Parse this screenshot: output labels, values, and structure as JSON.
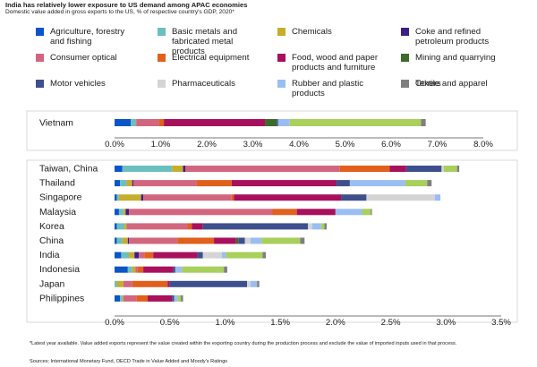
{
  "title": "India has relatively lower exposure to US demand among APAC economies",
  "subtitle": "Domestic value added in gross exports to the US, % of respective country's GDP, 2020*",
  "footnote": "*Latest year available. Value added exports represent the value created within the exporting country during the production process and exclude the value of imported inputs used in that process.",
  "sources": "Sources: International Monetary Fund, OECD Trade in Value Added and Moody's Ratings",
  "chart_data": [
    {
      "type": "stacked-bar-horizontal",
      "unit": "% of GDP",
      "xlim": [
        0,
        8
      ],
      "ticks": [
        0,
        1,
        2,
        3,
        4,
        5,
        6,
        7,
        8
      ],
      "tick_labels": [
        "0.0%",
        "1.0%",
        "2.0%",
        "3.0%",
        "4.0%",
        "5.0%",
        "6.0%",
        "7.0%",
        "8.0%"
      ],
      "categories": [
        "Vietnam"
      ],
      "series": [
        {
          "name": "Agriculture, forestry and fishing",
          "color": "#0a55c8",
          "values": [
            0.35
          ]
        },
        {
          "name": "Basic metals and fabricated metal products",
          "color": "#6bbfbf",
          "values": [
            0.12
          ]
        },
        {
          "name": "Chemicals",
          "color": "#c7ad2e",
          "values": [
            0.0
          ]
        },
        {
          "name": "Coke and refined petroleum products",
          "color": "#3b1f86",
          "values": [
            0.0
          ]
        },
        {
          "name": "Consumer optical",
          "color": "#d2667f",
          "values": [
            0.5
          ]
        },
        {
          "name": "Electrical equipment",
          "color": "#e0601c",
          "values": [
            0.1
          ]
        },
        {
          "name": "Food, wood and paper products and furniture",
          "color": "#a8105c",
          "values": [
            2.2
          ]
        },
        {
          "name": "Mining and quarrying",
          "color": "#3f6b2a",
          "values": [
            0.25
          ]
        },
        {
          "name": "Motor vehicles",
          "color": "#3e4f8d",
          "values": [
            0.03
          ]
        },
        {
          "name": "Pharmaceuticals",
          "color": "#d4d4d4",
          "values": [
            0.0
          ]
        },
        {
          "name": "Rubber and plastic products",
          "color": "#9bbef2",
          "values": [
            0.25
          ]
        },
        {
          "name": "Textile and apparel",
          "color": "#a9cf5c",
          "values": [
            2.85
          ]
        },
        {
          "name": "Others",
          "color": "#7f7f7f",
          "values": [
            0.1
          ]
        }
      ]
    },
    {
      "type": "stacked-bar-horizontal",
      "unit": "% of GDP",
      "xlim": [
        0,
        3.5
      ],
      "ticks": [
        0,
        0.5,
        1,
        1.5,
        2,
        2.5,
        3,
        3.5
      ],
      "tick_labels": [
        "0.0%",
        "0.5%",
        "1.0%",
        "1.5%",
        "2.0%",
        "2.5%",
        "3.0%",
        "3.5%"
      ],
      "categories": [
        "Taiwan, China",
        "Thailand",
        "Singapore",
        "Malaysia",
        "Korea",
        "China",
        "India",
        "Indonesia",
        "Japan",
        "Philippines"
      ],
      "series": [
        {
          "name": "Agriculture, forestry and fishing",
          "color": "#0a55c8",
          "values": [
            0.07,
            0.05,
            0.02,
            0.04,
            0.02,
            0.02,
            0.06,
            0.12,
            0.0,
            0.05
          ]
        },
        {
          "name": "Basic metals and fabricated metal products",
          "color": "#6bbfbf",
          "values": [
            0.45,
            0.06,
            0.02,
            0.04,
            0.07,
            0.05,
            0.07,
            0.04,
            0.02,
            0.02
          ]
        },
        {
          "name": "Chemicals",
          "color": "#c7ad2e",
          "values": [
            0.1,
            0.05,
            0.2,
            0.02,
            0.02,
            0.05,
            0.05,
            0.03,
            0.06,
            0.01
          ]
        },
        {
          "name": "Coke and refined petroleum products",
          "color": "#3b1f86",
          "values": [
            0.02,
            0.01,
            0.02,
            0.03,
            0.0,
            0.01,
            0.04,
            0.0,
            0.0,
            0.0
          ]
        },
        {
          "name": "Consumer optical",
          "color": "#d2667f",
          "values": [
            1.4,
            0.57,
            0.8,
            1.3,
            0.55,
            0.44,
            0.05,
            0.02,
            0.08,
            0.12
          ]
        },
        {
          "name": "Electrical equipment",
          "color": "#e0601c",
          "values": [
            0.45,
            0.32,
            0.02,
            0.22,
            0.04,
            0.33,
            0.08,
            0.05,
            0.32,
            0.1
          ]
        },
        {
          "name": "Food, wood and paper products and furniture",
          "color": "#a8105c",
          "values": [
            0.15,
            0.95,
            0.97,
            0.35,
            0.1,
            0.2,
            0.4,
            0.27,
            0.02,
            0.22
          ]
        },
        {
          "name": "Mining and quarrying",
          "color": "#3f6b2a",
          "values": [
            0.0,
            0.0,
            0.0,
            0.0,
            0.0,
            0.02,
            0.0,
            0.0,
            0.0,
            0.0
          ]
        },
        {
          "name": "Motor vehicles",
          "color": "#3e4f8d",
          "values": [
            0.32,
            0.12,
            0.23,
            0.0,
            0.95,
            0.06,
            0.05,
            0.02,
            0.7,
            0.02
          ]
        },
        {
          "name": "Pharmaceuticals",
          "color": "#d4d4d4",
          "values": [
            0.02,
            0.0,
            0.62,
            0.0,
            0.04,
            0.05,
            0.17,
            0.0,
            0.03,
            0.0
          ]
        },
        {
          "name": "Rubber and plastic products",
          "color": "#9bbef2",
          "values": [
            0.0,
            0.5,
            0.05,
            0.24,
            0.08,
            0.1,
            0.04,
            0.06,
            0.06,
            0.03
          ]
        },
        {
          "name": "Textile and apparel",
          "color": "#a9cf5c",
          "values": [
            0.12,
            0.2,
            0.0,
            0.08,
            0.03,
            0.35,
            0.33,
            0.38,
            0.0,
            0.03
          ]
        },
        {
          "name": "Others",
          "color": "#7f7f7f",
          "values": [
            0.02,
            0.04,
            0.0,
            0.01,
            0.02,
            0.04,
            0.03,
            0.03,
            0.02,
            0.02
          ]
        }
      ]
    }
  ]
}
